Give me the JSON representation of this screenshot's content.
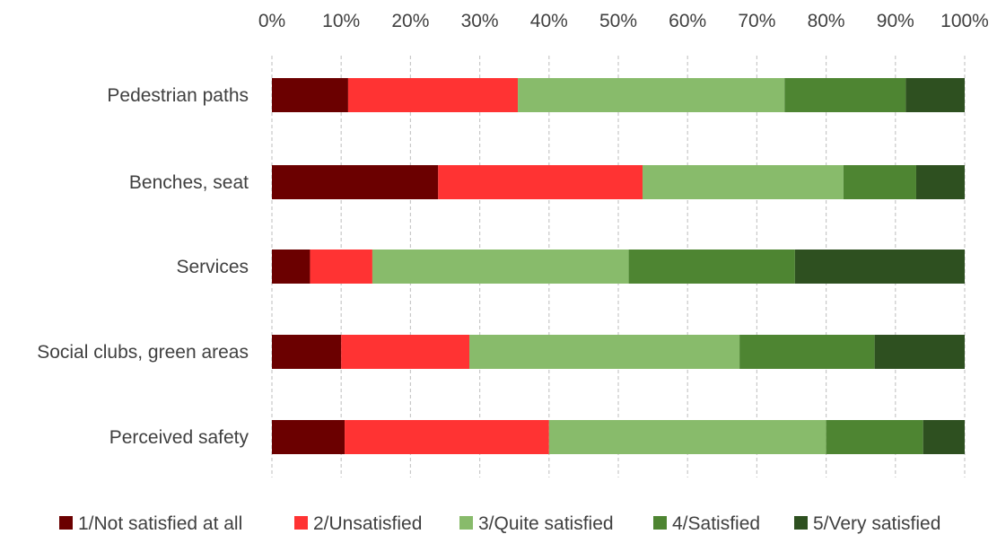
{
  "chart_data": {
    "type": "bar",
    "orientation": "horizontal",
    "stacked": true,
    "percent_stacked": true,
    "categories": [
      "Pedestrian paths",
      "Benches, seat",
      "Services",
      "Social clubs, green areas",
      "Perceived safety"
    ],
    "series": [
      {
        "name": "1/Not satisfied at all",
        "color": "#6b0000",
        "values": [
          11,
          24,
          5.5,
          10,
          10.5
        ]
      },
      {
        "name": "2/Unsatisfied",
        "color": "#ff3333",
        "values": [
          24.5,
          29.5,
          9,
          18.5,
          29.5
        ]
      },
      {
        "name": "3/Quite satisfied",
        "color": "#88bb6b",
        "values": [
          38.5,
          29,
          37,
          39,
          40
        ]
      },
      {
        "name": "4/Satisfied",
        "color": "#4e8532",
        "values": [
          17.5,
          10.5,
          24,
          19.5,
          14
        ]
      },
      {
        "name": "5/Very satisfied",
        "color": "#2e5020",
        "values": [
          8.5,
          7,
          24.5,
          13,
          6
        ]
      }
    ],
    "xlim": [
      0,
      100
    ],
    "x_ticks": [
      "0%",
      "10%",
      "20%",
      "30%",
      "40%",
      "50%",
      "60%",
      "70%",
      "80%",
      "90%",
      "100%"
    ],
    "axis_position": "top",
    "grid": "vertical-dashed",
    "legend_position": "bottom",
    "title": "",
    "xlabel": "",
    "ylabel": ""
  }
}
